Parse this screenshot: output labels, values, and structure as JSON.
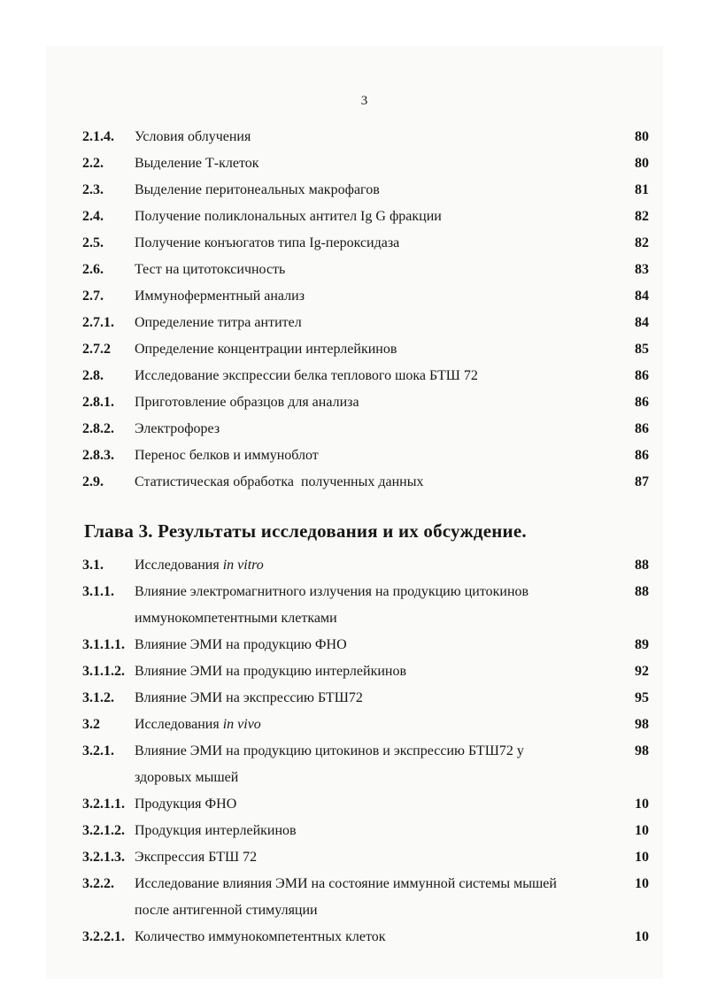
{
  "document": {
    "page_number": "3",
    "chapter3_heading": "Глава 3. Результаты исследования и их обсуждение.",
    "toc_part2": [
      {
        "num": "2.1.4.",
        "title": "Условия облучения",
        "page": "80"
      },
      {
        "num": "2.2.",
        "title": "Выделение Т-клеток",
        "page": "80"
      },
      {
        "num": "2.3.",
        "title": "Выделение перитонеальных макрофагов",
        "page": "81"
      },
      {
        "num": "2.4.",
        "title": "Получение поликлональных антител Ig G фракции",
        "page": "82"
      },
      {
        "num": "2.5.",
        "title": "Получение конъюгатов типа Ig-пероксидаза",
        "page": "82"
      },
      {
        "num": "2.6.",
        "title": "Тест на цитотоксичность",
        "page": "83"
      },
      {
        "num": "2.7.",
        "title": "Иммуноферментный анализ",
        "page": "84"
      },
      {
        "num": "2.7.1.",
        "title": "Определение титра антител",
        "page": "84"
      },
      {
        "num": "2.7.2",
        "title": "Определение концентрации интерлейкинов",
        "page": "85"
      },
      {
        "num": "2.8.",
        "title": "Исследование экспрессии белка теплового шока БТШ 72",
        "page": "86"
      },
      {
        "num": "2.8.1.",
        "title": "Приготовление образцов для анализа",
        "page": "86"
      },
      {
        "num": "2.8.2.",
        "title": "Электрофорез",
        "page": "86"
      },
      {
        "num": "2.8.3.",
        "title": "Перенос белков и иммуноблот",
        "page": "86"
      },
      {
        "num": "2.9.",
        "title": "Статистическая обработка  полученных данных",
        "page": "87"
      }
    ],
    "toc_part3": [
      {
        "num": "3.1.",
        "title": "Исследования ",
        "italic": "in vitro",
        "page": "88"
      },
      {
        "num": "3.1.1.",
        "title": "Влияние электромагнитного излучения на продукцию цитокинов",
        "cont": "иммунокомпетентными клетками",
        "page": "88"
      },
      {
        "num": "3.1.1.1.",
        "title": "Влияние ЭМИ на продукцию ФНО",
        "page": "89"
      },
      {
        "num": "3.1.1.2.",
        "title": "Влияние ЭМИ на продукцию интерлейкинов",
        "page": "92"
      },
      {
        "num": "3.1.2.",
        "title": "Влияние ЭМИ на экспрессию БТШ72",
        "page": "95"
      },
      {
        "num": "3.2",
        "title": "Исследования ",
        "italic": "in vivo",
        "page": "98"
      },
      {
        "num": "3.2.1.",
        "title": "Влияние ЭМИ на продукцию цитокинов и экспрессию БТШ72 у",
        "cont": "здоровых мышей",
        "page": "98"
      },
      {
        "num": "3.2.1.1.",
        "title": "Продукция ФНО",
        "page": "10"
      },
      {
        "num": "3.2.1.2.",
        "title": "Продукция интерлейкинов",
        "page": "10"
      },
      {
        "num": "3.2.1.3.",
        "title": "Экспрессия БТШ 72",
        "page": "10"
      },
      {
        "num": "3.2.2.",
        "title": "Исследование влияния ЭМИ на состояние иммунной системы мышей",
        "cont": "после антигенной стимуляции",
        "page": "10"
      },
      {
        "num": "3.2.2.1.",
        "title": "Количество иммунокомпетентных клеток",
        "page": "10"
      }
    ]
  }
}
